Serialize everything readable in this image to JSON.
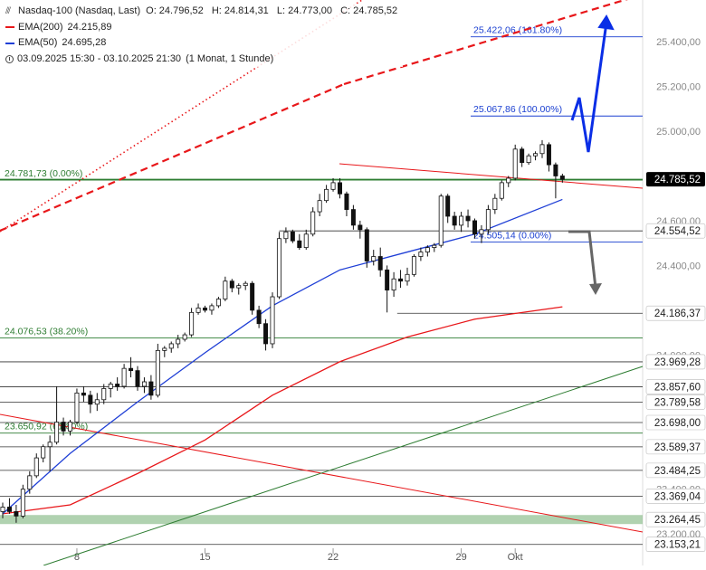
{
  "legend": {
    "instrument": "Nasdaq-100 (Nasdaq, Last)",
    "open": "O: 24.796,52",
    "high": "H: 24.814,31",
    "low": "L: 24.773,00",
    "close": "C: 24.785,52",
    "ema200": "EMA(200)",
    "ema200_value": "24.215,89",
    "ema50": "EMA(50)",
    "ema50_value": "24.695,28",
    "range": "03.09.2025 15:30 - 03.10.2025 21:30",
    "period": "(1 Monat, 1 Stunde)"
  },
  "chart_data": {
    "type": "candlestick",
    "ylim": [
      23140,
      25500
    ],
    "x_ticks": [
      {
        "label": "8",
        "bar": 11
      },
      {
        "label": "15",
        "bar": 30
      },
      {
        "label": "22",
        "bar": 49
      },
      {
        "label": "29",
        "bar": 68
      },
      {
        "label": "Okt",
        "bar": 76
      }
    ],
    "y_ticks": [
      {
        "label": "25.400,00",
        "value": 25400
      },
      {
        "label": "25.200,00",
        "value": 25200
      },
      {
        "label": "25.000,00",
        "value": 25000
      },
      {
        "label": "24.600,00",
        "value": 24600
      },
      {
        "label": "24.400,00",
        "value": 24400
      },
      {
        "label": "24.000,00",
        "value": 24000
      },
      {
        "label": "23.400,00",
        "value": 23400
      },
      {
        "label": "23.200,00",
        "value": 23200
      }
    ],
    "candles": [
      [
        23300,
        23340,
        23270,
        23320
      ],
      [
        23320,
        23360,
        23290,
        23300
      ],
      [
        23300,
        23330,
        23250,
        23280
      ],
      [
        23280,
        23420,
        23270,
        23400
      ],
      [
        23400,
        23480,
        23380,
        23460
      ],
      [
        23460,
        23560,
        23450,
        23540
      ],
      [
        23540,
        23600,
        23520,
        23590
      ],
      [
        23590,
        23640,
        23480,
        23610
      ],
      [
        23610,
        23860,
        23600,
        23700
      ],
      [
        23700,
        23720,
        23640,
        23660
      ],
      [
        23660,
        23710,
        23640,
        23700
      ],
      [
        23700,
        23850,
        23690,
        23830
      ],
      [
        23830,
        23860,
        23790,
        23820
      ],
      [
        23820,
        23840,
        23740,
        23780
      ],
      [
        23780,
        23830,
        23750,
        23800
      ],
      [
        23800,
        23870,
        23780,
        23850
      ],
      [
        23850,
        23880,
        23810,
        23870
      ],
      [
        23870,
        23900,
        23840,
        23860
      ],
      [
        23860,
        23960,
        23850,
        23940
      ],
      [
        23940,
        23990,
        23900,
        23930
      ],
      [
        23930,
        23950,
        23840,
        23860
      ],
      [
        23860,
        23900,
        23830,
        23880
      ],
      [
        23880,
        23910,
        23800,
        23820
      ],
      [
        23820,
        24050,
        23810,
        24020
      ],
      [
        24020,
        24040,
        23990,
        24030
      ],
      [
        24030,
        24060,
        24010,
        24050
      ],
      [
        24050,
        24090,
        24030,
        24070
      ],
      [
        24070,
        24100,
        24060,
        24090
      ],
      [
        24090,
        24210,
        24080,
        24190
      ],
      [
        24190,
        24230,
        24180,
        24210
      ],
      [
        24210,
        24220,
        24190,
        24200
      ],
      [
        24200,
        24230,
        24180,
        24220
      ],
      [
        24220,
        24260,
        24210,
        24250
      ],
      [
        24250,
        24350,
        24240,
        24330
      ],
      [
        24330,
        24340,
        24280,
        24300
      ],
      [
        24300,
        24320,
        24270,
        24310
      ],
      [
        24310,
        24330,
        24290,
        24320
      ],
      [
        24320,
        24330,
        24180,
        24200
      ],
      [
        24200,
        24220,
        24120,
        24140
      ],
      [
        24140,
        24160,
        24020,
        24050
      ],
      [
        24050,
        24280,
        24030,
        24260
      ],
      [
        24260,
        24550,
        24250,
        24520
      ],
      [
        24520,
        24570,
        24500,
        24550
      ],
      [
        24550,
        24560,
        24500,
        24510
      ],
      [
        24510,
        24540,
        24470,
        24480
      ],
      [
        24480,
        24560,
        24470,
        24540
      ],
      [
        24540,
        24660,
        24530,
        24640
      ],
      [
        24640,
        24720,
        24620,
        24690
      ],
      [
        24690,
        24760,
        24680,
        24740
      ],
      [
        24740,
        24790,
        24730,
        24770
      ],
      [
        24770,
        24790,
        24700,
        24720
      ],
      [
        24720,
        24730,
        24620,
        24650
      ],
      [
        24650,
        24670,
        24560,
        24580
      ],
      [
        24580,
        24600,
        24520,
        24560
      ],
      [
        24560,
        24570,
        24390,
        24420
      ],
      [
        24420,
        24470,
        24400,
        24440
      ],
      [
        24440,
        24480,
        24350,
        24380
      ],
      [
        24380,
        24400,
        24190,
        24290
      ],
      [
        24290,
        24370,
        24260,
        24340
      ],
      [
        24340,
        24380,
        24300,
        24330
      ],
      [
        24330,
        24390,
        24310,
        24360
      ],
      [
        24360,
        24450,
        24350,
        24440
      ],
      [
        24440,
        24480,
        24420,
        24460
      ],
      [
        24460,
        24490,
        24440,
        24480
      ],
      [
        24480,
        24500,
        24460,
        24490
      ],
      [
        24490,
        24720,
        24480,
        24710
      ],
      [
        24710,
        24720,
        24590,
        24620
      ],
      [
        24620,
        24640,
        24560,
        24580
      ],
      [
        24580,
        24640,
        24550,
        24620
      ],
      [
        24620,
        24650,
        24570,
        24600
      ],
      [
        24600,
        24610,
        24520,
        24540
      ],
      [
        24540,
        24580,
        24500,
        24560
      ],
      [
        24560,
        24670,
        24540,
        24650
      ],
      [
        24650,
        24720,
        24630,
        24700
      ],
      [
        24700,
        24780,
        24690,
        24770
      ],
      [
        24770,
        24800,
        24750,
        24790
      ],
      [
        24790,
        24940,
        24780,
        24920
      ],
      [
        24920,
        24930,
        24840,
        24860
      ],
      [
        24860,
        24900,
        24850,
        24890
      ],
      [
        24890,
        24910,
        24870,
        24900
      ],
      [
        24900,
        24960,
        24880,
        24940
      ],
      [
        24940,
        24950,
        24820,
        24850
      ],
      [
        24850,
        24860,
        24700,
        24800
      ],
      [
        24800,
        24810,
        24770,
        24785
      ]
    ],
    "ema200": [
      [
        0,
        23290
      ],
      [
        10,
        23330
      ],
      [
        20,
        23470
      ],
      [
        30,
        23620
      ],
      [
        40,
        23820
      ],
      [
        50,
        23970
      ],
      [
        60,
        24080
      ],
      [
        70,
        24160
      ],
      [
        83,
        24215
      ]
    ],
    "ema50": [
      [
        0,
        23290
      ],
      [
        10,
        23560
      ],
      [
        20,
        23790
      ],
      [
        30,
        24010
      ],
      [
        40,
        24220
      ],
      [
        50,
        24380
      ],
      [
        60,
        24460
      ],
      [
        70,
        24540
      ],
      [
        83,
        24695
      ]
    ],
    "horizontal_levels": [
      {
        "value": 24785.52,
        "label": "24.785,52",
        "color": "#000000",
        "type": "price"
      },
      {
        "value": 24554.52,
        "label": "24.554,52",
        "color": "#111111",
        "type": "level"
      },
      {
        "value": 24186.37,
        "label": "24.186,37",
        "color": "#111111",
        "type": "level"
      },
      {
        "value": 23969.28,
        "label": "23.969,28",
        "color": "#111111",
        "type": "level"
      },
      {
        "value": 23857.6,
        "label": "23.857,60",
        "color": "#111111",
        "type": "level"
      },
      {
        "value": 23789.58,
        "label": "23.789,58",
        "color": "#111111",
        "type": "level"
      },
      {
        "value": 23698.0,
        "label": "23.698,00",
        "color": "#111111",
        "type": "level"
      },
      {
        "value": 23589.37,
        "label": "23.589,37",
        "color": "#111111",
        "type": "level"
      },
      {
        "value": 23484.25,
        "label": "23.484,25",
        "color": "#111111",
        "type": "level"
      },
      {
        "value": 23369.04,
        "label": "23.369,04",
        "color": "#111111",
        "type": "level"
      },
      {
        "value": 23264.45,
        "label": "23.264,45",
        "color": "#111111",
        "type": "zone"
      },
      {
        "value": 23153.21,
        "label": "23.153,21",
        "color": "#111111",
        "type": "level"
      }
    ],
    "fib_levels": [
      {
        "value": 24781.73,
        "label": "24.781,73 (0.00%)",
        "color": "#2e7d32"
      },
      {
        "value": 24076.53,
        "label": "24.076,53 (38.20%)",
        "color": "#2e7d32"
      },
      {
        "value": 23650.92,
        "label": "23.650,92 (61.80%)",
        "color": "#2e7d32"
      },
      {
        "value": 25422.06,
        "label": "25.422,06 (161.80%)",
        "color": "#1a3fd1"
      },
      {
        "value": 25067.86,
        "label": "25.067,86 (100.00%)",
        "color": "#1a3fd1"
      },
      {
        "value": 24505.14,
        "label": "24.505,14 (0.00%)",
        "color": "#1a3fd1"
      }
    ],
    "colors": {
      "ema200": "#e8171a",
      "ema50": "#1f3fd6",
      "green_line": "#2e7d32",
      "blue_projection": "#0a2ee6",
      "grey_arrow": "#666666",
      "candle_up": "#111111",
      "candle_down": "#111111",
      "zone": "#8fbf8f"
    }
  }
}
